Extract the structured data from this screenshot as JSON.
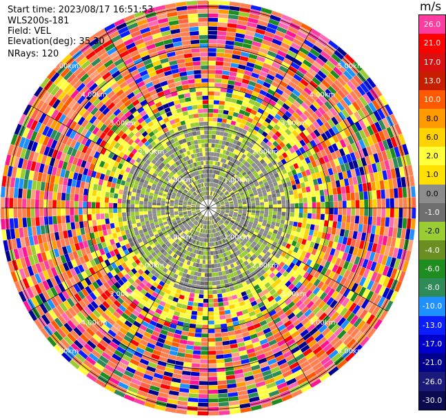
{
  "info": {
    "start_time": "Start time: 2023/08/17 16:51:53",
    "site": "WLS200s-181",
    "field": "Field: VEL",
    "elevation": "Elevation(deg): 35.30",
    "nrays": "NRays: 120"
  },
  "colorbar": {
    "unit": "m/s",
    "labels": [
      "26.0",
      "21.0",
      "17.0",
      "13.0",
      "10.0",
      "8.0",
      "6.0",
      "2.0",
      "1.0",
      "0.0",
      "-1.0",
      "-2.0",
      "-4.0",
      "-6.0",
      "-8.0",
      "-10.0",
      "-13.0",
      "-17.0",
      "-21.0",
      "-26.0",
      "-30.0"
    ],
    "colors": [
      "#ff3ca0",
      "#ff0000",
      "#d81010",
      "#c81e00",
      "#ff5a00",
      "#ff9a00",
      "#ffd200",
      "#ffff3c",
      "#ffe000",
      "#8c8c8c",
      "#6e6e6e",
      "#9acd32",
      "#6b8e23",
      "#1e8c1e",
      "#2e8b57",
      "#1e90ff",
      "#0a1eff",
      "#0000cd",
      "#00008b",
      "#1a1a7a",
      "#0a0a50"
    ]
  },
  "ring_labels": {
    "1": "1.00km",
    "2": "2.00km",
    "3": "3.00km",
    "4": "4.00km",
    "5": "5.00km"
  }
}
